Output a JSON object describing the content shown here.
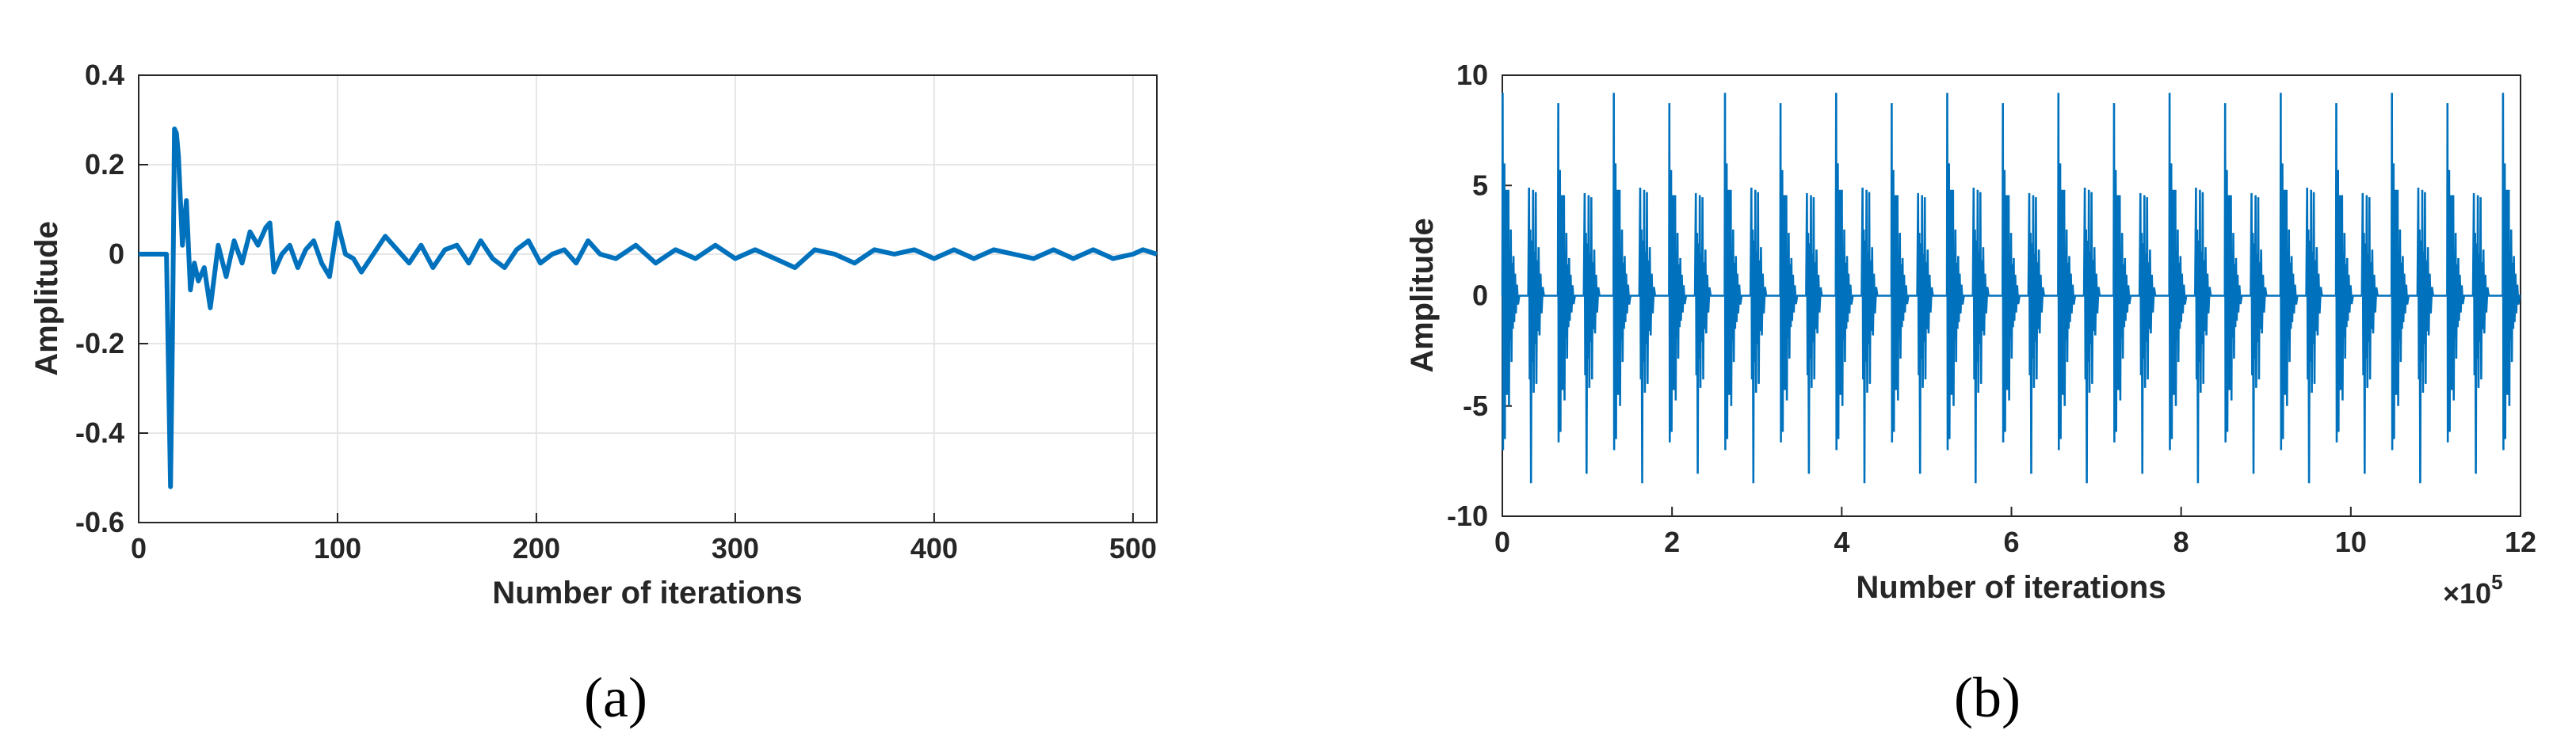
{
  "chart_data": [
    {
      "type": "line",
      "panel_label": "(a)",
      "xlabel": "Number of iterations",
      "ylabel": "Amplitude",
      "xlim": [
        0,
        512
      ],
      "ylim": [
        -0.6,
        0.4
      ],
      "xticks": [
        0,
        100,
        200,
        300,
        400,
        500
      ],
      "xtick_labels": [
        "0",
        "100",
        "200",
        "300",
        "400",
        "500"
      ],
      "yticks": [
        -0.6,
        -0.4,
        -0.2,
        0,
        0.2,
        0.4
      ],
      "ytick_labels": [
        "-0.6",
        "-0.4",
        "-0.2",
        "0",
        "0.2",
        "0.4"
      ],
      "grid": true,
      "color": "#0072BD",
      "series": [
        {
          "x": [
            0,
            14,
            16,
            17,
            18,
            19,
            20,
            22,
            24,
            26,
            28,
            30,
            33,
            36,
            40,
            44,
            48,
            52,
            56,
            60,
            64,
            66,
            68,
            72,
            76,
            80,
            84,
            88,
            92,
            96,
            100,
            104,
            108,
            112,
            118,
            124,
            130,
            136,
            142,
            148,
            154,
            160,
            166,
            172,
            178,
            184,
            190,
            196,
            202,
            208,
            214,
            220,
            226,
            232,
            240,
            250,
            260,
            270,
            280,
            290,
            300,
            310,
            320,
            330,
            340,
            350,
            360,
            370,
            380,
            390,
            400,
            410,
            420,
            430,
            440,
            450,
            460,
            470,
            480,
            490,
            500,
            505,
            512
          ],
          "y": [
            0.0,
            0.0,
            -0.52,
            -0.18,
            0.28,
            0.27,
            0.22,
            0.02,
            0.12,
            -0.08,
            -0.02,
            -0.06,
            -0.03,
            -0.12,
            0.02,
            -0.05,
            0.03,
            -0.02,
            0.05,
            0.02,
            0.06,
            0.07,
            -0.04,
            0.0,
            0.02,
            -0.03,
            0.01,
            0.03,
            -0.02,
            -0.05,
            0.07,
            0.0,
            -0.01,
            -0.04,
            0.0,
            0.04,
            0.01,
            -0.02,
            0.02,
            -0.03,
            0.01,
            0.02,
            -0.02,
            0.03,
            -0.01,
            -0.03,
            0.01,
            0.03,
            -0.02,
            0.0,
            0.01,
            -0.02,
            0.03,
            0.0,
            -0.01,
            0.02,
            -0.02,
            0.01,
            -0.01,
            0.02,
            -0.01,
            0.01,
            -0.01,
            -0.03,
            0.01,
            0.0,
            -0.02,
            0.01,
            0.0,
            0.01,
            -0.01,
            0.01,
            -0.01,
            0.01,
            0.0,
            -0.01,
            0.01,
            -0.01,
            0.01,
            -0.01,
            0.0,
            0.01,
            0.0
          ]
        }
      ]
    },
    {
      "type": "line",
      "panel_label": "(b)",
      "xlabel": "Number of iterations",
      "ylabel": "Amplitude",
      "xlim": [
        0,
        12
      ],
      "ylim": [
        -10,
        10
      ],
      "xticks": [
        0,
        2,
        4,
        6,
        8,
        10,
        12
      ],
      "xtick_labels": [
        "0",
        "2",
        "4",
        "6",
        "8",
        "10",
        "12"
      ],
      "yticks": [
        -10,
        -5,
        0,
        5,
        10
      ],
      "ytick_labels": [
        "-10",
        "-5",
        "0",
        "5",
        "10"
      ],
      "x_multiplier_base": "×10",
      "x_multiplier_exponent": "5",
      "grid": false,
      "color": "#0072BD",
      "description": "periodic bursts of oscillation",
      "burst_period": 0.655,
      "peak_max": 9.2,
      "peak_min": -8.5
    }
  ]
}
